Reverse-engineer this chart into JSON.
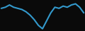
{
  "x": [
    0,
    1,
    2,
    3,
    4,
    5,
    6,
    7,
    8,
    9,
    10,
    11,
    12,
    13,
    14,
    15,
    16,
    17,
    18,
    19,
    20
  ],
  "y": [
    18,
    19,
    21,
    19,
    18,
    17,
    15,
    12,
    8,
    3,
    0,
    7,
    14,
    19,
    18,
    20,
    19,
    21,
    22,
    19,
    14
  ],
  "line_color": "#3399cc",
  "linewidth": 1.5,
  "background_color": "#0a0a0a",
  "ylim": [
    -2,
    26
  ]
}
